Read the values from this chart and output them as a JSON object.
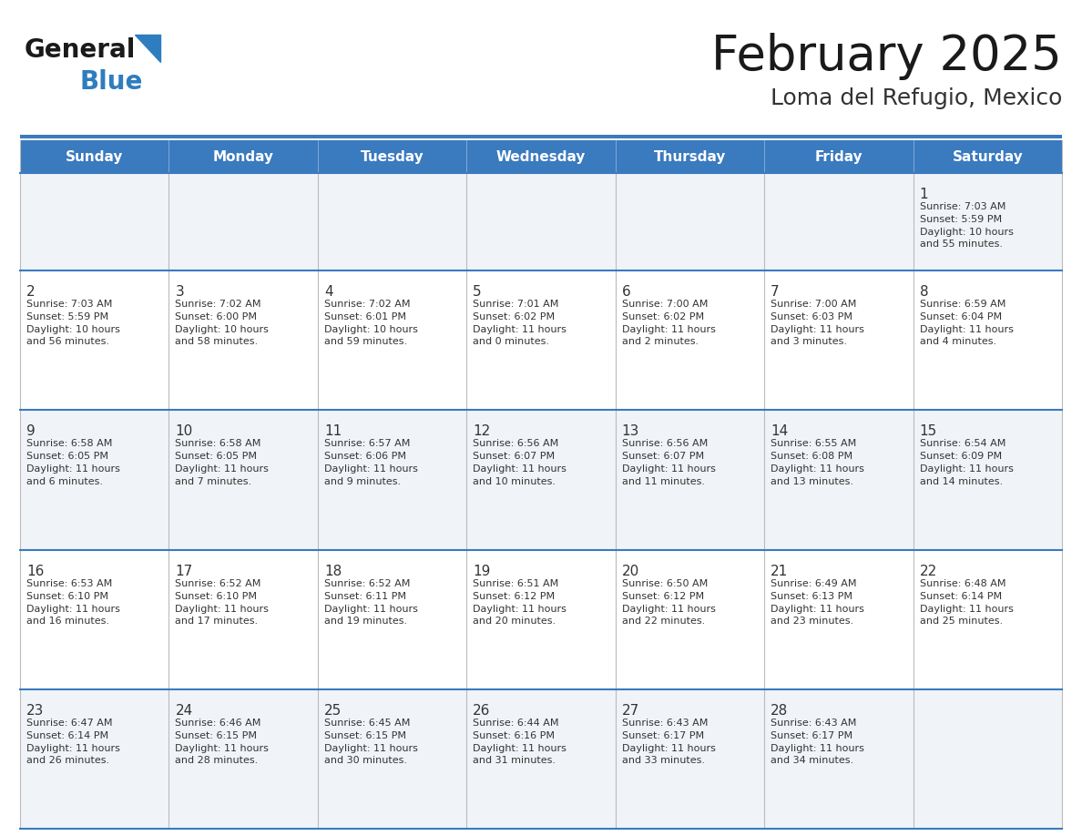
{
  "title": "February 2025",
  "subtitle": "Loma del Refugio, Mexico",
  "days_of_week": [
    "Sunday",
    "Monday",
    "Tuesday",
    "Wednesday",
    "Thursday",
    "Friday",
    "Saturday"
  ],
  "header_bg": "#3a7abf",
  "header_text": "#ffffff",
  "cell_bg_odd": "#f0f4f8",
  "cell_bg_even": "#ffffff",
  "cell_text": "#333333",
  "border_color": "#3a7abf",
  "sep_color": "#bbbbbb",
  "title_color": "#1a1a1a",
  "subtitle_color": "#333333",
  "general_text_color": "#1a1a1a",
  "blue_logo_color": "#2e7dbf",
  "calendar_data": [
    [
      null,
      null,
      null,
      null,
      null,
      null,
      {
        "day": 1,
        "sunrise": "7:03 AM",
        "sunset": "5:59 PM",
        "daylight": "10 hours\nand 55 minutes."
      }
    ],
    [
      {
        "day": 2,
        "sunrise": "7:03 AM",
        "sunset": "5:59 PM",
        "daylight": "10 hours\nand 56 minutes."
      },
      {
        "day": 3,
        "sunrise": "7:02 AM",
        "sunset": "6:00 PM",
        "daylight": "10 hours\nand 58 minutes."
      },
      {
        "day": 4,
        "sunrise": "7:02 AM",
        "sunset": "6:01 PM",
        "daylight": "10 hours\nand 59 minutes."
      },
      {
        "day": 5,
        "sunrise": "7:01 AM",
        "sunset": "6:02 PM",
        "daylight": "11 hours\nand 0 minutes."
      },
      {
        "day": 6,
        "sunrise": "7:00 AM",
        "sunset": "6:02 PM",
        "daylight": "11 hours\nand 2 minutes."
      },
      {
        "day": 7,
        "sunrise": "7:00 AM",
        "sunset": "6:03 PM",
        "daylight": "11 hours\nand 3 minutes."
      },
      {
        "day": 8,
        "sunrise": "6:59 AM",
        "sunset": "6:04 PM",
        "daylight": "11 hours\nand 4 minutes."
      }
    ],
    [
      {
        "day": 9,
        "sunrise": "6:58 AM",
        "sunset": "6:05 PM",
        "daylight": "11 hours\nand 6 minutes."
      },
      {
        "day": 10,
        "sunrise": "6:58 AM",
        "sunset": "6:05 PM",
        "daylight": "11 hours\nand 7 minutes."
      },
      {
        "day": 11,
        "sunrise": "6:57 AM",
        "sunset": "6:06 PM",
        "daylight": "11 hours\nand 9 minutes."
      },
      {
        "day": 12,
        "sunrise": "6:56 AM",
        "sunset": "6:07 PM",
        "daylight": "11 hours\nand 10 minutes."
      },
      {
        "day": 13,
        "sunrise": "6:56 AM",
        "sunset": "6:07 PM",
        "daylight": "11 hours\nand 11 minutes."
      },
      {
        "day": 14,
        "sunrise": "6:55 AM",
        "sunset": "6:08 PM",
        "daylight": "11 hours\nand 13 minutes."
      },
      {
        "day": 15,
        "sunrise": "6:54 AM",
        "sunset": "6:09 PM",
        "daylight": "11 hours\nand 14 minutes."
      }
    ],
    [
      {
        "day": 16,
        "sunrise": "6:53 AM",
        "sunset": "6:10 PM",
        "daylight": "11 hours\nand 16 minutes."
      },
      {
        "day": 17,
        "sunrise": "6:52 AM",
        "sunset": "6:10 PM",
        "daylight": "11 hours\nand 17 minutes."
      },
      {
        "day": 18,
        "sunrise": "6:52 AM",
        "sunset": "6:11 PM",
        "daylight": "11 hours\nand 19 minutes."
      },
      {
        "day": 19,
        "sunrise": "6:51 AM",
        "sunset": "6:12 PM",
        "daylight": "11 hours\nand 20 minutes."
      },
      {
        "day": 20,
        "sunrise": "6:50 AM",
        "sunset": "6:12 PM",
        "daylight": "11 hours\nand 22 minutes."
      },
      {
        "day": 21,
        "sunrise": "6:49 AM",
        "sunset": "6:13 PM",
        "daylight": "11 hours\nand 23 minutes."
      },
      {
        "day": 22,
        "sunrise": "6:48 AM",
        "sunset": "6:14 PM",
        "daylight": "11 hours\nand 25 minutes."
      }
    ],
    [
      {
        "day": 23,
        "sunrise": "6:47 AM",
        "sunset": "6:14 PM",
        "daylight": "11 hours\nand 26 minutes."
      },
      {
        "day": 24,
        "sunrise": "6:46 AM",
        "sunset": "6:15 PM",
        "daylight": "11 hours\nand 28 minutes."
      },
      {
        "day": 25,
        "sunrise": "6:45 AM",
        "sunset": "6:15 PM",
        "daylight": "11 hours\nand 30 minutes."
      },
      {
        "day": 26,
        "sunrise": "6:44 AM",
        "sunset": "6:16 PM",
        "daylight": "11 hours\nand 31 minutes."
      },
      {
        "day": 27,
        "sunrise": "6:43 AM",
        "sunset": "6:17 PM",
        "daylight": "11 hours\nand 33 minutes."
      },
      {
        "day": 28,
        "sunrise": "6:43 AM",
        "sunset": "6:17 PM",
        "daylight": "11 hours\nand 34 minutes."
      },
      null
    ]
  ]
}
